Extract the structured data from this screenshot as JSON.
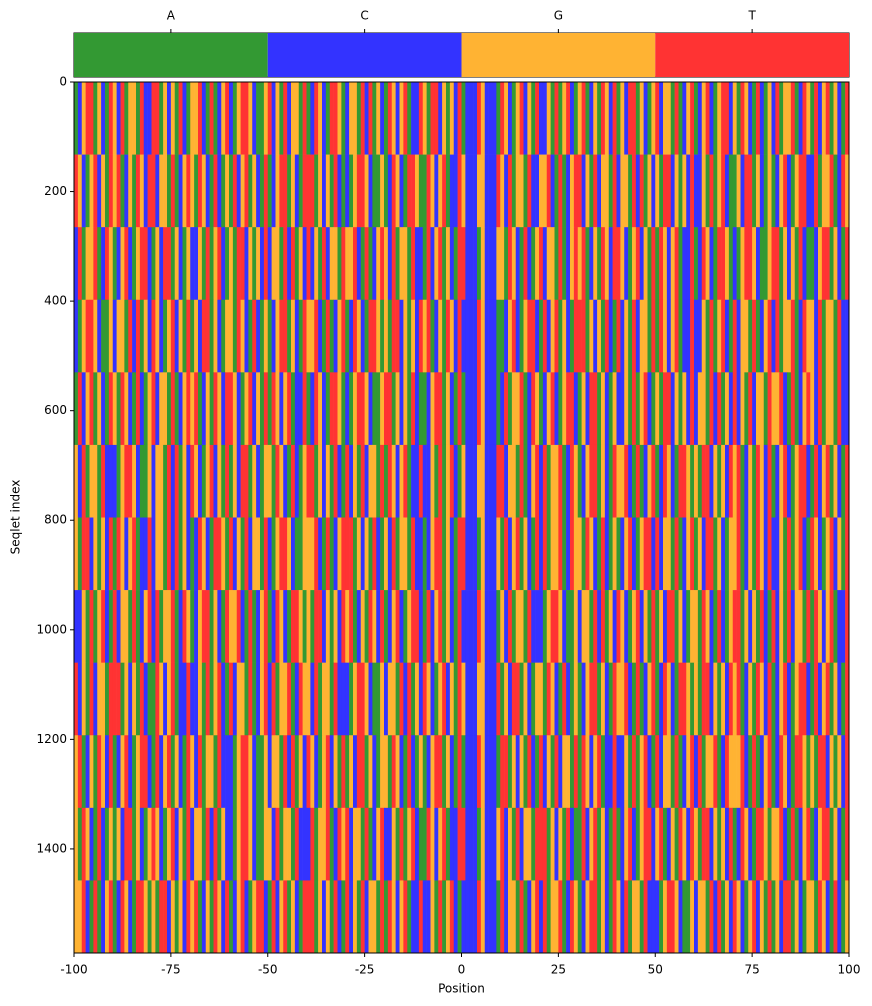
{
  "chart_data": {
    "type": "heatmap",
    "xlabel": "Position",
    "ylabel": "Seqlet index",
    "xlim": [
      -100,
      100
    ],
    "xticks": [
      -100,
      -75,
      -50,
      -25,
      0,
      25,
      50,
      75,
      100
    ],
    "ylim": [
      1590,
      0
    ],
    "yticks": [
      0,
      200,
      400,
      600,
      800,
      1000,
      1200,
      1400
    ],
    "legend": {
      "categories": [
        "A",
        "C",
        "G",
        "T"
      ],
      "colors": [
        "#339933",
        "#3333ff",
        "#ffb333",
        "#ff3333"
      ]
    },
    "rows": [
      "ACGTTAGCATGCTAGGATCCTTAGCGATCAGGTCATACGTCAGTTGCAAGTCGATCGGATACTGCATTGACGGATCTAGCATGCGTACCTGATTCGAGCTACCCTGCCCATGCAGTCGATCCGATAGTCAGTACGATGCTAGCTTAGCAGTCGGATACGTACGTCAGTTCGATGCATCAGCTAGGTACTGATCGTAGCAT",
      "TGCAGTCGATGTACGATGCTTCGGATACGTGATGCATCAGATCGTAGCATACGTTAGCATTTAGCGATCACAGTTGCAAGACTGCATTGAATGCGTACCTGCCCGGCCCTGCTAGGATCCGGTCATACGTTCGATCGGATCGGATCTAGCGATTCGAGCTCCGATAGTCAAGCTTAGCAGACGTCAGTTCCTAGGTACTG",
      "CTAGGTACTGACGTCAGTTCAGCTTAGCAGCCGATAGTCAGATTCGAGCTCGGATCTAGCTCGATCGGATGGTCATACGTGCTAGGATCCATCGTAGCATTCCCAGCCCGGATGCATCAGTCGGATACGTGTACGATGCTTGCAGTCGATATGCGTACCTACTGCATTGACAGTTGCAAGTTAGCGATCAACGTTAGCAT",
      "CAGTTGCAAGCGGATCTAGCTGCAGTCGATAGCTTAGCAGGATGCATCAGACGTTAGCATGGTCATACGTACTGCATTGAGATTCGAGCTGTACGATGCTCCCCTGCCCAACGTCAGTTCATCGTAGCATTTAGCGATCATCGATCGGATATGCGTACCTCCGATAGTCATCGGATACGTCTAGGTACTGGCTAGGATCC",
      "ATCGTAGCATGATGCATCAGTCGGATACGTGTACGATGCTTGCAGTCGATATGCGTACCTACTGCATTGACAGTTGCAAGTTAGCGATCAACGTTAGCATACCCTGCCCACTAGGTACTGACGTCAGTTCAGCTTAGCAGCCGATAGTCAGATTCGAGCTCGGATCTAGCTCGATCGGATGGTCATACGTGCTAGGATCC",
      "GCTAGGATCCCAGTTGCAAGCGGATCTAGCTGCAGTCGATAGCTTAGCAGGATGCATCAGTTAGCGATCATCGATCGGATATGCGTACCTCCGATAGTCAGCCCGGCCCTTCGGATACGTCTAGGTACTGACGTTAGCATGGTCATACGTACTGCATTGAGATTCGAGCTGTACGATGCTACGTCAGTTCATCGTAGCAT",
      "GATTCGAGCTATGCGTACCTCGGATCTAGCACTGCATTGATCGATCGGATCAGTTGCAAGGGTCATACGTTTAGCGATCAGCTAGGATCCACGTTAGCATTCCCAGCCCGATCGTAGCATCTAGGTACTGGATGCATCAGACGTCAGTTCTCGGATACGTAGCTTAGCAGGTACGATGCTCCGATAGTCATGCAGTCGAT",
      "CCGATAGTCATCGGATACGTCTAGGTACTGACGTTAGCATGGTCATACGTACTGCATTGAGATTCGAGCTGTACGATGCTACGTCAGTTCATCGTAGCATCCCCTGCCCAGCTAGGATCCCAGTTGCAAGCGGATCTAGCTGCAGTCGATAGCTTAGCAGGATGCATCAGTTAGCGATCATCGATCGGATATGCGTACCT",
      "TCGATCGGATTTAGCGATCAATGCGTACCTCCGATAGTCATCGGATACGTCTAGGTACTGGCTAGGATCCCAGTTGCAAGCGGATCTAGCTGCAGTCGATGCCCGGCCCTAGCTTAGCAGGATGCATCAGACGTTAGCATGGTCATACGTACTGCATTGAGATTCGAGCTGTACGATGCTACGTCAGTTCATCGTAGCAT",
      "GTACGATGCTACGTCAGTTCATCGTAGCATGCTAGGATCCCAGTTGCAAGCGGATCTAGCTGCAGTCGATAGCTTAGCAGGATGCATCAGACGTTAGCATACCCTGCCCATTAGCGATCATCGATCGGATATGCGTACCTCCGATAGTCATCGGATACGTCTAGGTACTGGGTCATACGTACTGCATTGAGATTCGAGCT",
      "GATGCATCAGAGCTTAGCAGTGCAGTCGATCGGATCTAGCCAGTTGCAAGGCTAGGATCCCTAGGTACTGTCGGATACGTCCGATAGTCAATGCGTACCTTCCCAGCCCGTCGATCGGATTTAGCGATCAATCGTAGCATACGTCAGTTCGTACGATGCTGATTCGAGCTACTGCATTGAGGTCATACGTACGTTAGCAT",
      "GGTCATACGTACTGCATTGAGATTCGAGCTGTACGATGCTACGTCAGTTCATCGTAGCATTTAGCGATCATCGATCGGATATGCGTACCTCCGATAGTCACCCCTGCCCATCGGATACGTCTAGGTACTGACGTTAGCATGCTAGGATCCCAGTTGCAAGCGGATCTAGCTGCAGTCGATAGCTTAGCAGGATGCATCAG"
    ]
  }
}
